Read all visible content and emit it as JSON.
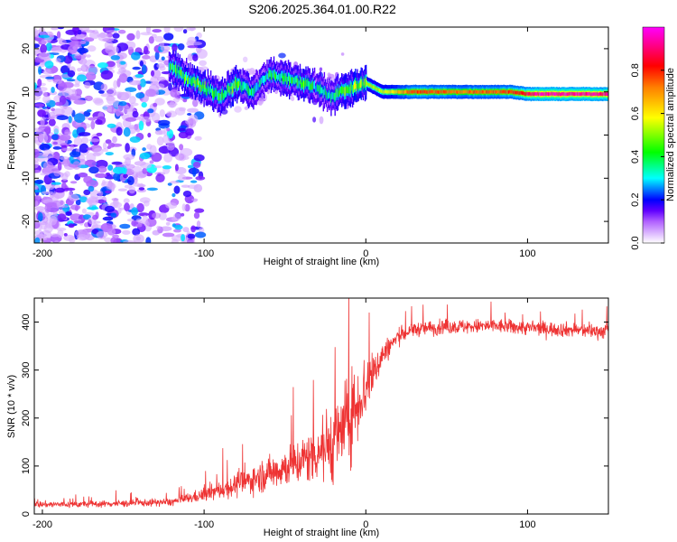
{
  "title": "S206.2025.364.01.00.R22",
  "chart_data": [
    {
      "type": "heatmap",
      "title": "",
      "xlabel": "Height of straight line (km)",
      "ylabel": "Frequency (Hz)",
      "xlim": [
        -205,
        150
      ],
      "ylim": [
        -25,
        25
      ],
      "xticks": [
        -200,
        -100,
        0,
        100
      ],
      "yticks": [
        -20,
        -10,
        0,
        10,
        20
      ],
      "colorbar": {
        "label": "Normalized spectral amplitude",
        "range": [
          0,
          1
        ],
        "ticks": [
          0.0,
          0.2,
          0.4,
          0.6,
          0.8
        ],
        "tick_labels": [
          "0.0",
          "0.2",
          "0.4",
          "0.6",
          "0.8"
        ],
        "colors": [
          "#ffffff",
          "#c080ff",
          "#8000ff",
          "#0000ff",
          "#00ffff",
          "#00ff00",
          "#ffff00",
          "#ff8000",
          "#ff0000",
          "#ff00ff"
        ]
      },
      "ridge": {
        "x": [
          -122,
          -110,
          -100,
          -90,
          -80,
          -70,
          -60,
          -50,
          -40,
          -30,
          -22,
          -15,
          -8,
          0,
          10,
          30,
          60,
          90,
          100,
          110,
          150
        ],
        "y": [
          16,
          13,
          11,
          9,
          12,
          10,
          14,
          13,
          12,
          11,
          9,
          10,
          11,
          12,
          10,
          10,
          10,
          10,
          9.5,
          9.5,
          9.5
        ],
        "peak_amplitude": [
          0.4,
          0.45,
          0.45,
          0.4,
          0.45,
          0.35,
          0.4,
          0.4,
          0.45,
          0.35,
          0.35,
          0.45,
          0.5,
          0.55,
          0.55,
          0.8,
          0.75,
          0.8,
          0.9,
          0.98,
          0.95
        ]
      },
      "noise_region": {
        "x": [
          -205,
          -100
        ],
        "y": [
          -25,
          25
        ],
        "amplitude": [
          0.05,
          0.3
        ]
      }
    },
    {
      "type": "line",
      "title": "",
      "xlabel": "Height of straight line (km)",
      "ylabel": "SNR (10 * v/v)",
      "xlim": [
        -205,
        150
      ],
      "ylim": [
        0,
        450
      ],
      "xticks": [
        -200,
        -100,
        0,
        100
      ],
      "yticks": [
        0,
        100,
        200,
        300,
        400
      ],
      "color": "#ee3333",
      "series": [
        {
          "x": [
            -205,
            -180,
            -150,
            -120,
            -100,
            -80,
            -60,
            -40,
            -30,
            -20,
            -10,
            0,
            10,
            20,
            30,
            50,
            80,
            100,
            120,
            150
          ],
          "values": [
            20,
            20,
            22,
            25,
            40,
            60,
            85,
            110,
            130,
            150,
            200,
            265,
            330,
            370,
            385,
            390,
            392,
            388,
            385,
            380
          ],
          "spread": [
            10,
            10,
            10,
            12,
            20,
            35,
            50,
            70,
            90,
            120,
            130,
            100,
            40,
            25,
            22,
            22,
            22,
            22,
            22,
            22
          ]
        }
      ]
    }
  ]
}
